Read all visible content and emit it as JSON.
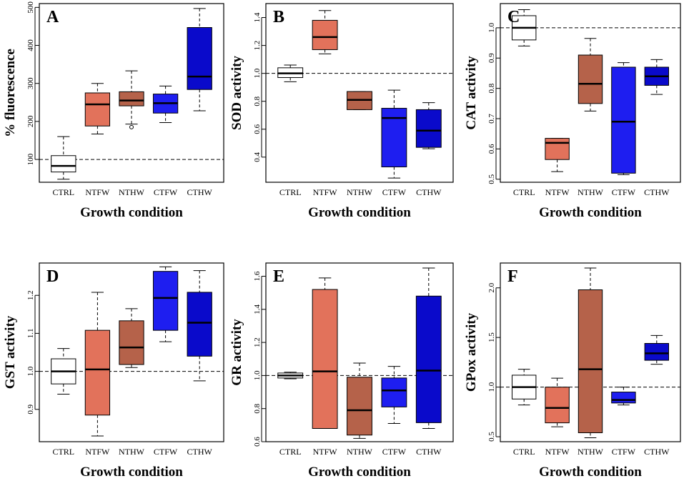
{
  "chart_data": [
    {
      "type": "box",
      "panel": "A",
      "ylabel": "% fluorescence",
      "xlabel": "Growth condition",
      "ylim": [
        40,
        510
      ],
      "yticks": [
        100,
        200,
        300,
        400,
        500
      ],
      "reference_line": 100,
      "categories": [
        "CTRL",
        "NTFW",
        "NTHW",
        "CTFW",
        "CTHW"
      ],
      "colors": [
        "#ffffff",
        "#e2725b",
        "#b5624a",
        "#1e1ef0",
        "#0a0acb"
      ],
      "boxes": [
        {
          "min": 48,
          "q1": 67,
          "median": 83,
          "q3": 110,
          "max": 160,
          "outliers": []
        },
        {
          "min": 167,
          "q1": 188,
          "median": 245,
          "q3": 275,
          "max": 300,
          "outliers": []
        },
        {
          "min": 193,
          "q1": 241,
          "median": 255,
          "q3": 278,
          "max": 333,
          "outliers": [
            185
          ]
        },
        {
          "min": 197,
          "q1": 222,
          "median": 248,
          "q3": 272,
          "max": 293,
          "outliers": []
        },
        {
          "min": 228,
          "q1": 284,
          "median": 318,
          "q3": 447,
          "max": 497,
          "outliers": []
        }
      ]
    },
    {
      "type": "box",
      "panel": "B",
      "ylabel": "SOD activity",
      "xlabel": "Growth condition",
      "ylim": [
        0.22,
        1.5
      ],
      "yticks": [
        0.4,
        0.6,
        0.8,
        1.0,
        1.2,
        1.4
      ],
      "reference_line": 1.0,
      "categories": [
        "CTRL",
        "NTFW",
        "NTHW",
        "CTFW",
        "CTHW"
      ],
      "colors": [
        "#ffffff",
        "#e2725b",
        "#b5624a",
        "#1e1ef0",
        "#0a0acb"
      ],
      "boxes": [
        {
          "min": 0.94,
          "q1": 0.97,
          "median": 1.0,
          "q3": 1.04,
          "max": 1.06,
          "outliers": []
        },
        {
          "min": 1.14,
          "q1": 1.17,
          "median": 1.26,
          "q3": 1.38,
          "max": 1.45,
          "outliers": []
        },
        {
          "min": 0.74,
          "q1": 0.74,
          "median": 0.81,
          "q3": 0.87,
          "max": 0.87,
          "outliers": []
        },
        {
          "min": 0.25,
          "q1": 0.33,
          "median": 0.68,
          "q3": 0.75,
          "max": 0.88,
          "outliers": []
        },
        {
          "min": 0.46,
          "q1": 0.47,
          "median": 0.59,
          "q3": 0.74,
          "max": 0.79,
          "outliers": []
        }
      ]
    },
    {
      "type": "box",
      "panel": "C",
      "ylabel": "CAT activity",
      "xlabel": "Growth condition",
      "ylim": [
        0.49,
        1.08
      ],
      "yticks": [
        0.5,
        0.6,
        0.7,
        0.8,
        0.9,
        1.0
      ],
      "reference_line": 1.0,
      "categories": [
        "CTRL",
        "NTFW",
        "NTHW",
        "CTFW",
        "CTHW"
      ],
      "colors": [
        "#ffffff",
        "#e2725b",
        "#b5624a",
        "#1e1ef0",
        "#0a0acb"
      ],
      "boxes": [
        {
          "min": 0.94,
          "q1": 0.96,
          "median": 1.0,
          "q3": 1.04,
          "max": 1.06,
          "outliers": []
        },
        {
          "min": 0.525,
          "q1": 0.565,
          "median": 0.62,
          "q3": 0.635,
          "max": 0.635,
          "outliers": []
        },
        {
          "min": 0.725,
          "q1": 0.75,
          "median": 0.815,
          "q3": 0.91,
          "max": 0.965,
          "outliers": []
        },
        {
          "min": 0.515,
          "q1": 0.52,
          "median": 0.69,
          "q3": 0.87,
          "max": 0.885,
          "outliers": []
        },
        {
          "min": 0.78,
          "q1": 0.81,
          "median": 0.84,
          "q3": 0.87,
          "max": 0.895,
          "outliers": []
        }
      ]
    },
    {
      "type": "box",
      "panel": "D",
      "ylabel": "GST activity",
      "xlabel": "Growth condition",
      "ylim": [
        0.815,
        1.285
      ],
      "yticks": [
        0.9,
        1.0,
        1.1,
        1.2
      ],
      "reference_line": 1.0,
      "categories": [
        "CTRL",
        "NTFW",
        "NTHW",
        "CTFW",
        "CTHW"
      ],
      "colors": [
        "#ffffff",
        "#e2725b",
        "#b5624a",
        "#1e1ef0",
        "#0a0acb"
      ],
      "boxes": [
        {
          "min": 0.94,
          "q1": 0.967,
          "median": 1.0,
          "q3": 1.033,
          "max": 1.06,
          "outliers": []
        },
        {
          "min": 0.83,
          "q1": 0.885,
          "median": 1.005,
          "q3": 1.108,
          "max": 1.208,
          "outliers": []
        },
        {
          "min": 1.01,
          "q1": 1.018,
          "median": 1.063,
          "q3": 1.133,
          "max": 1.165,
          "outliers": []
        },
        {
          "min": 1.078,
          "q1": 1.108,
          "median": 1.193,
          "q3": 1.263,
          "max": 1.275,
          "outliers": []
        },
        {
          "min": 0.975,
          "q1": 1.04,
          "median": 1.128,
          "q3": 1.208,
          "max": 1.265,
          "outliers": []
        }
      ]
    },
    {
      "type": "box",
      "panel": "E",
      "ylabel": "GR activity",
      "xlabel": "Growth condition",
      "ylim": [
        0.6,
        1.68
      ],
      "yticks": [
        0.6,
        0.8,
        1.0,
        1.2,
        1.4,
        1.6
      ],
      "reference_line": 1.0,
      "categories": [
        "CTRL",
        "NTFW",
        "NTHW",
        "CTFW",
        "CTHW"
      ],
      "colors": [
        "#ffffff",
        "#e2725b",
        "#b5624a",
        "#1e1ef0",
        "#0a0acb"
      ],
      "boxes": [
        {
          "min": 0.98,
          "q1": 0.985,
          "median": 1.0,
          "q3": 1.015,
          "max": 1.02,
          "outliers": []
        },
        {
          "min": 0.68,
          "q1": 0.68,
          "median": 1.025,
          "q3": 1.52,
          "max": 1.59,
          "outliers": []
        },
        {
          "min": 0.62,
          "q1": 0.64,
          "median": 0.79,
          "q3": 0.99,
          "max": 1.075,
          "outliers": []
        },
        {
          "min": 0.71,
          "q1": 0.81,
          "median": 0.91,
          "q3": 0.985,
          "max": 1.055,
          "outliers": []
        },
        {
          "min": 0.68,
          "q1": 0.715,
          "median": 1.03,
          "q3": 1.48,
          "max": 1.65,
          "outliers": []
        }
      ]
    },
    {
      "type": "box",
      "panel": "F",
      "ylabel": "GPox activity",
      "xlabel": "Growth condition",
      "ylim": [
        0.45,
        2.25
      ],
      "yticks": [
        0.5,
        1.0,
        1.5,
        2.0
      ],
      "reference_line": 1.0,
      "categories": [
        "CTRL",
        "NTFW",
        "NTHW",
        "CTFW",
        "CTHW"
      ],
      "colors": [
        "#ffffff",
        "#e2725b",
        "#b5624a",
        "#1e1ef0",
        "#0a0acb"
      ],
      "boxes": [
        {
          "min": 0.82,
          "q1": 0.88,
          "median": 1.0,
          "q3": 1.12,
          "max": 1.18,
          "outliers": []
        },
        {
          "min": 0.6,
          "q1": 0.64,
          "median": 0.79,
          "q3": 1.0,
          "max": 1.09,
          "outliers": []
        },
        {
          "min": 0.49,
          "q1": 0.54,
          "median": 1.18,
          "q3": 1.98,
          "max": 2.2,
          "outliers": []
        },
        {
          "min": 0.82,
          "q1": 0.84,
          "median": 0.87,
          "q3": 0.95,
          "max": 1.0,
          "outliers": []
        },
        {
          "min": 1.23,
          "q1": 1.27,
          "median": 1.34,
          "q3": 1.44,
          "max": 1.52,
          "outliers": []
        }
      ]
    }
  ]
}
